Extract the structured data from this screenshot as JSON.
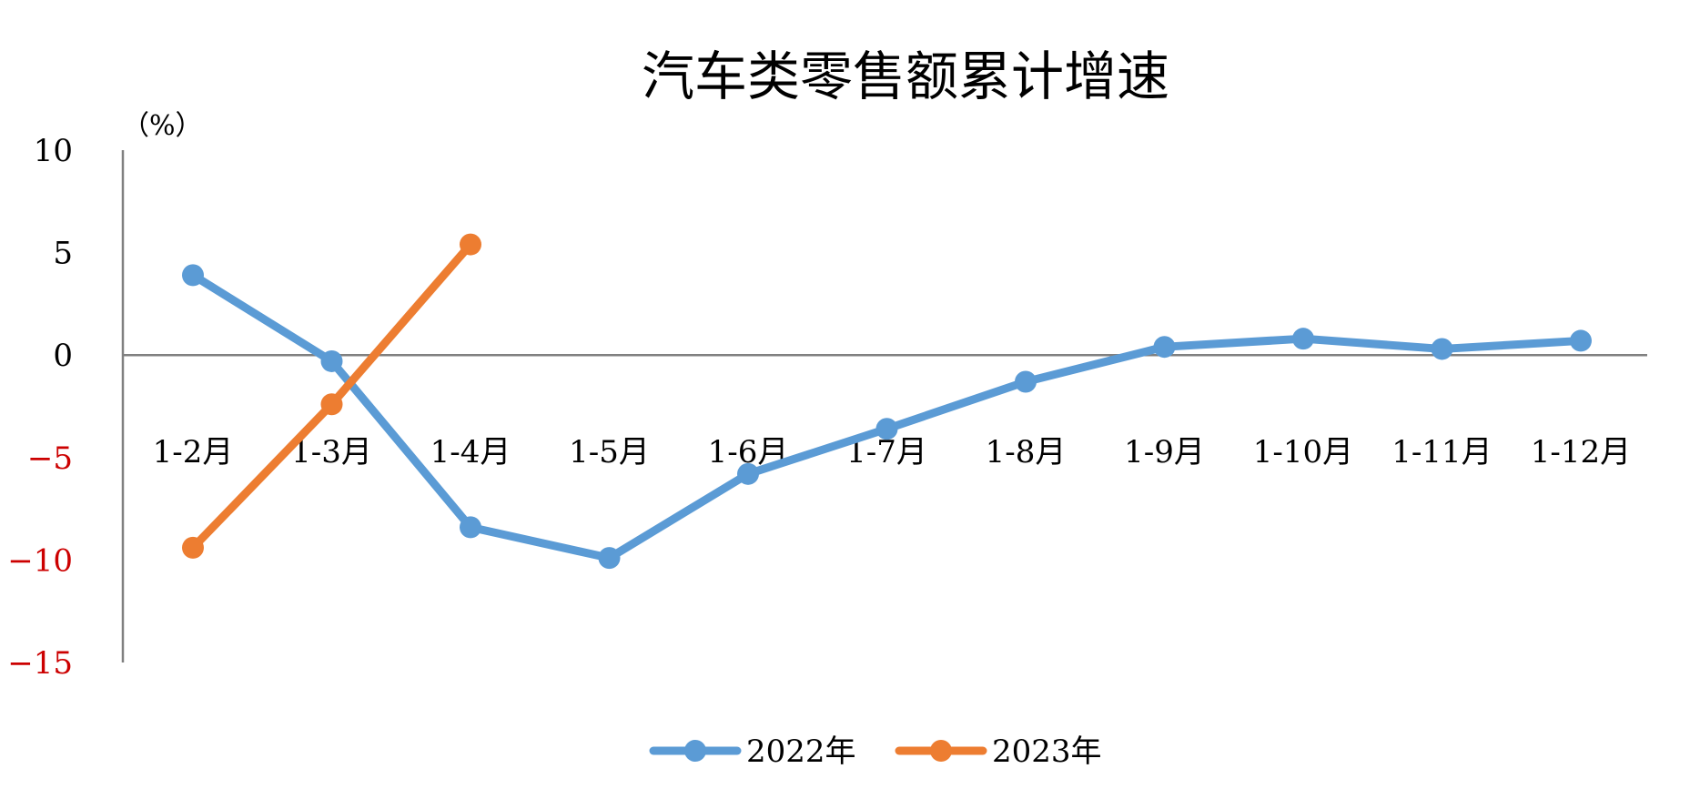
{
  "chart_data": {
    "type": "line",
    "title": "汽车类零售额累计增速",
    "ylabel": "（%）",
    "ylim": [
      -15,
      10
    ],
    "yticks": [
      10,
      5,
      0,
      -5,
      -10,
      -15
    ],
    "negative_tick_color": "#cc0000",
    "categories": [
      "1-2月",
      "1-3月",
      "1-4月",
      "1-5月",
      "1-6月",
      "1-7月",
      "1-8月",
      "1-9月",
      "1-10月",
      "1-11月",
      "1-12月"
    ],
    "series": [
      {
        "name": "2022年",
        "color": "#5b9bd5",
        "values": [
          3.9,
          -0.3,
          -8.4,
          -9.9,
          -5.8,
          -3.6,
          -1.3,
          0.4,
          0.8,
          0.3,
          0.7
        ]
      },
      {
        "name": "2023年",
        "color": "#ed7d31",
        "values": [
          -9.4,
          -2.4,
          5.4,
          null,
          null,
          null,
          null,
          null,
          null,
          null,
          null
        ]
      }
    ],
    "legend_position": "bottom",
    "grid": false
  }
}
